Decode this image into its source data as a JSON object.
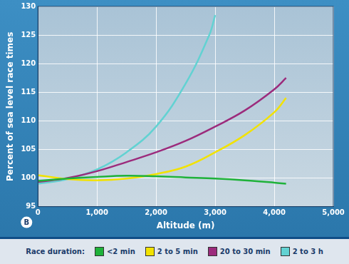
{
  "chart_data": {
    "type": "line",
    "x_label": "Altitude (m)",
    "y_label": "Percent of sea level race times",
    "annotation": "B",
    "legend_title": "Race duration:",
    "legend": "bottom",
    "grid": true,
    "xlim": [
      0,
      5000
    ],
    "xticks": [
      0,
      1000,
      2000,
      3000,
      4000,
      5000
    ],
    "ylim": [
      95,
      130
    ],
    "yticks": [
      95,
      100,
      105,
      110,
      115,
      120,
      125,
      130
    ],
    "series": [
      {
        "name": "<2 min",
        "color": "#1fb23a",
        "x": [
          0,
          500,
          1000,
          1500,
          2000,
          2500,
          3000,
          3500,
          4000,
          4200
        ],
        "values": [
          99.5,
          99.9,
          100.2,
          100.4,
          100.3,
          100.1,
          99.9,
          99.6,
          99.2,
          99.0
        ]
      },
      {
        "name": "2 to 5 min",
        "color": "#f2e200",
        "x": [
          0,
          500,
          1000,
          1500,
          2000,
          2500,
          3000,
          3500,
          4000,
          4200
        ],
        "values": [
          100.5,
          99.8,
          99.6,
          99.9,
          100.7,
          102.0,
          104.5,
          107.5,
          111.5,
          114.0
        ]
      },
      {
        "name": "20 to 30 min",
        "color": "#9c2b7c",
        "x": [
          0,
          500,
          1000,
          1500,
          2000,
          2500,
          3000,
          3500,
          4000,
          4200
        ],
        "values": [
          99.3,
          100.0,
          101.2,
          102.8,
          104.5,
          106.5,
          109.0,
          111.8,
          115.5,
          117.5
        ]
      },
      {
        "name": "2 to 3 h",
        "color": "#62d2d2",
        "x": [
          0,
          500,
          1000,
          1500,
          2000,
          2500,
          2900,
          3000
        ],
        "values": [
          99.0,
          99.8,
          101.5,
          104.5,
          109.0,
          116.5,
          125.0,
          128.5
        ]
      }
    ]
  }
}
